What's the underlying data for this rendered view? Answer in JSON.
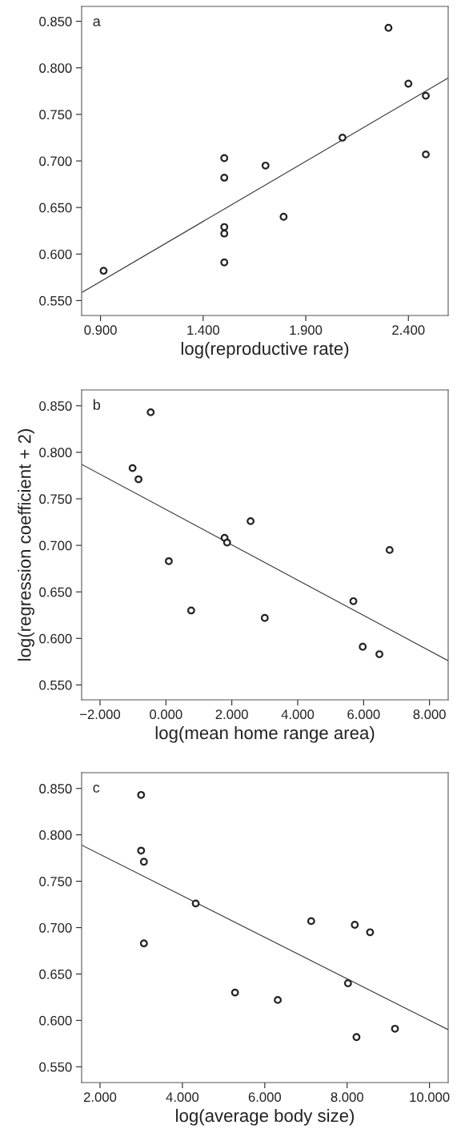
{
  "chart_data": [
    {
      "type": "scatter",
      "xlabel": "log(reproductive rate)",
      "annotations": [
        "a"
      ],
      "grid": false,
      "xlim": [
        0.808,
        2.594
      ],
      "ylim": [
        0.534,
        0.866
      ],
      "xticks": [
        {
          "value": 0.9,
          "label": "0.900"
        },
        {
          "value": 1.4,
          "label": "1.400"
        },
        {
          "value": 1.9,
          "label": "1.900"
        },
        {
          "value": 2.4,
          "label": "2.400"
        }
      ],
      "yticks": [
        {
          "value": 0.55,
          "label": "0.550"
        },
        {
          "value": 0.6,
          "label": "0.600"
        },
        {
          "value": 0.65,
          "label": "0.650"
        },
        {
          "value": 0.7,
          "label": "0.700"
        },
        {
          "value": 0.75,
          "label": "0.750"
        },
        {
          "value": 0.8,
          "label": "0.800"
        },
        {
          "value": 0.85,
          "label": "0.850"
        }
      ],
      "series": [
        {
          "marker": "circle",
          "color": "#222222",
          "x": [
            0.915,
            1.503,
            1.503,
            1.503,
            1.503,
            1.503,
            1.704,
            1.792,
            2.079,
            2.303,
            2.4,
            2.485,
            2.485
          ],
          "values": [
            0.582,
            0.703,
            0.682,
            0.629,
            0.622,
            0.591,
            0.695,
            0.64,
            0.725,
            0.843,
            0.783,
            0.77,
            0.707
          ]
        },
        {
          "type": "line",
          "color": "#333333",
          "x": [
            0.811,
            2.593
          ],
          "values": [
            0.559,
            0.789
          ]
        }
      ]
    },
    {
      "type": "scatter",
      "xlabel": "log(mean home range area)",
      "ylabel": "log(regression coefficient + 2)",
      "annotations": [
        "b"
      ],
      "grid": false,
      "xlim": [
        -2.558,
        8.567
      ],
      "ylim": [
        0.534,
        0.867
      ],
      "xticks": [
        {
          "value": -2,
          "label": "−2.000"
        },
        {
          "value": 0,
          "label": "0.000"
        },
        {
          "value": 2,
          "label": "2.000"
        },
        {
          "value": 4,
          "label": "4.000"
        },
        {
          "value": 6,
          "label": "6.000"
        },
        {
          "value": 8,
          "label": "8.000"
        }
      ],
      "yticks": [
        {
          "value": 0.55,
          "label": "0.550"
        },
        {
          "value": 0.6,
          "label": "0.600"
        },
        {
          "value": 0.65,
          "label": "0.650"
        },
        {
          "value": 0.7,
          "label": "0.700"
        },
        {
          "value": 0.75,
          "label": "0.750"
        },
        {
          "value": 0.8,
          "label": "0.800"
        },
        {
          "value": 0.85,
          "label": "0.850"
        }
      ],
      "series": [
        {
          "marker": "circle",
          "color": "#222222",
          "x": [
            -0.462,
            -1.012,
            -0.832,
            0.088,
            0.766,
            1.78,
            1.857,
            2.57,
            3.0,
            5.689,
            5.973,
            6.479,
            6.789
          ],
          "values": [
            0.843,
            0.783,
            0.771,
            0.683,
            0.63,
            0.708,
            0.703,
            0.726,
            0.622,
            0.64,
            0.591,
            0.583,
            0.695
          ]
        },
        {
          "type": "line",
          "color": "#333333",
          "x": [
            -2.558,
            8.567
          ],
          "values": [
            0.787,
            0.576
          ]
        }
      ]
    },
    {
      "type": "scatter",
      "xlabel": "log(average body size)",
      "annotations": [
        "c"
      ],
      "grid": false,
      "xlim": [
        1.553,
        10.454
      ],
      "ylim": [
        0.533,
        0.867
      ],
      "xticks": [
        {
          "value": 2,
          "label": "2.000"
        },
        {
          "value": 4,
          "label": "4.000"
        },
        {
          "value": 6,
          "label": "6.000"
        },
        {
          "value": 8,
          "label": "8.000"
        },
        {
          "value": 10,
          "label": "10.000"
        }
      ],
      "yticks": [
        {
          "value": 0.55,
          "label": "0.550"
        },
        {
          "value": 0.6,
          "label": "0.600"
        },
        {
          "value": 0.65,
          "label": "0.650"
        },
        {
          "value": 0.7,
          "label": "0.700"
        },
        {
          "value": 0.75,
          "label": "0.750"
        },
        {
          "value": 0.8,
          "label": "0.800"
        },
        {
          "value": 0.85,
          "label": "0.850"
        }
      ],
      "series": [
        {
          "marker": "circle",
          "color": "#222222",
          "x": [
            2.997,
            2.997,
            3.065,
            3.065,
            4.323,
            5.278,
            6.316,
            7.127,
            8.021,
            8.186,
            8.227,
            8.557,
            9.162
          ],
          "values": [
            0.843,
            0.783,
            0.771,
            0.683,
            0.726,
            0.63,
            0.622,
            0.707,
            0.64,
            0.703,
            0.582,
            0.695,
            0.591
          ]
        },
        {
          "type": "line",
          "color": "#333333",
          "x": [
            1.553,
            10.454
          ],
          "values": [
            0.789,
            0.59
          ]
        }
      ]
    }
  ]
}
